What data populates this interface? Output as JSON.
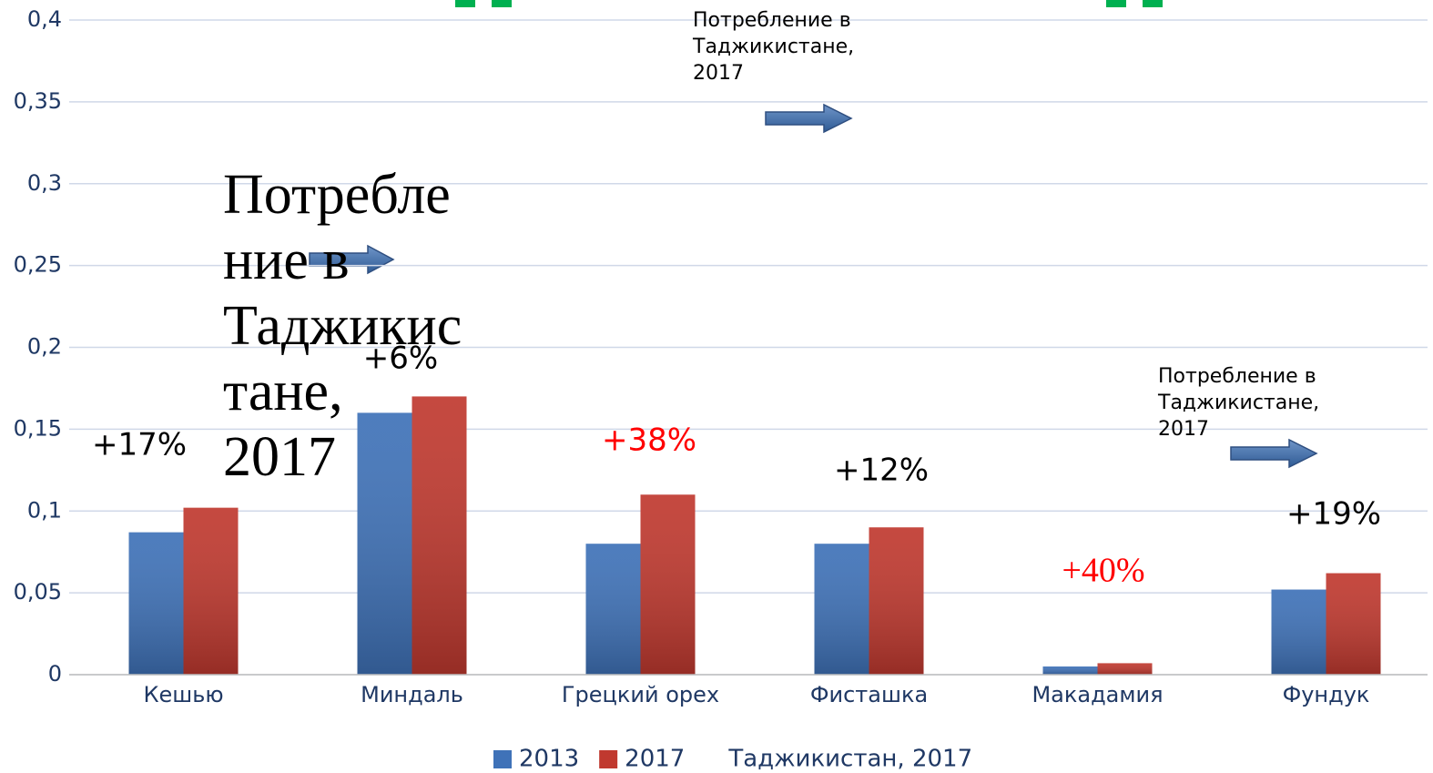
{
  "chart_data": {
    "type": "bar",
    "categories": [
      "Кешью",
      "Миндаль",
      "Грецкий орех",
      "Фисташка",
      "Макадамия",
      "Фундук"
    ],
    "series": [
      {
        "name": "2013",
        "color": "#3f72b8",
        "values": [
          0.087,
          0.16,
          0.08,
          0.08,
          0.005,
          0.052
        ]
      },
      {
        "name": "2017",
        "color": "#c0392f",
        "values": [
          0.102,
          0.17,
          0.11,
          0.09,
          0.007,
          0.062
        ]
      }
    ],
    "legend_extra": [
      "Таджикистан, 2017"
    ],
    "ylim": [
      0,
      0.4
    ],
    "yticks": [
      0,
      {
        "value": 0.05,
        "label": "0,05"
      },
      {
        "value": 0.1,
        "label": "0,1"
      },
      {
        "value": 0.15,
        "label": "0,15"
      },
      {
        "value": 0.2,
        "label": "0,2"
      },
      {
        "value": 0.25,
        "label": "0,25"
      },
      {
        "value": 0.3,
        "label": "0,3"
      },
      {
        "value": 0.35,
        "label": "0,35"
      },
      {
        "value": 0.4,
        "label": "0,4"
      }
    ],
    "grid": true,
    "annotations": [
      {
        "text": "+17%",
        "color": "#000000"
      },
      {
        "text": "+6%",
        "color": "#000000"
      },
      {
        "text": "+38%",
        "color": "#ff0000"
      },
      {
        "text": "+12%",
        "color": "#000000"
      },
      {
        "text": "+40%",
        "color": "#ff0000"
      },
      {
        "text": "+19%",
        "color": "#000000"
      }
    ],
    "notes": [
      {
        "lines": [
          "Потребле",
          "ние в",
          "Таджикис",
          "тане,",
          "2017"
        ]
      },
      {
        "lines": [
          "Потребление в",
          "Таджикистане,",
          "2017"
        ]
      },
      {
        "lines": [
          "Потребление в",
          "Таджикистане,",
          "2017"
        ]
      }
    ]
  }
}
